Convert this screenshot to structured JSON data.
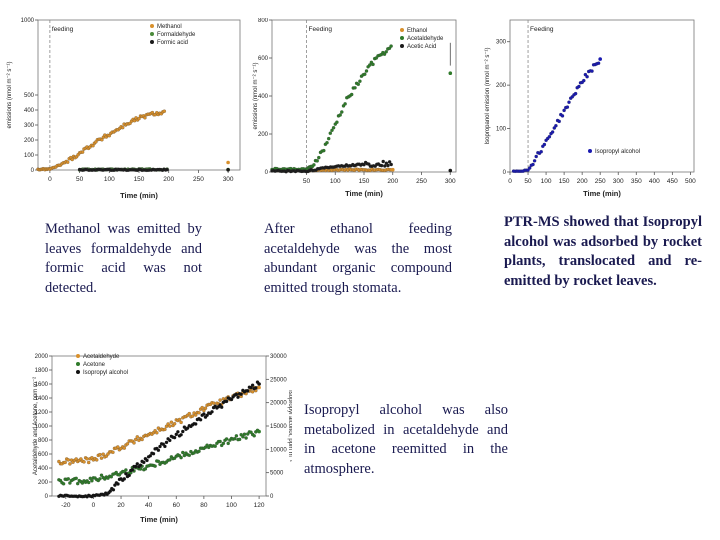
{
  "captions": {
    "methanol": "Methanol was emitted by leaves formaldehyde and formic acid was not detected.",
    "ethanol": "After ethanol feeding acetaldehyde was the most abundant organic compound emitted trough stomata.",
    "ptrms": "PTR-MS showed that Isopropyl alcohol was adsorbed by rocket plants, translocated and re-emitted by rocket leaves.",
    "isopropyl": "Isopropyl alcohol was also metabolized in acetaldehyde and in acetone reemitted in the atmosphere."
  },
  "chart_data": [
    {
      "id": "methanol",
      "type": "scatter",
      "title": "",
      "annotation": "feeding",
      "feeding_x": 0,
      "xlabel": "Time (min)",
      "ylabel": "emissions (nmol m⁻² s⁻¹)",
      "xlim": [
        -20,
        320
      ],
      "ylim": [
        0,
        1000
      ],
      "xticks": [
        0,
        50,
        100,
        150,
        200,
        250,
        300
      ],
      "yticks": [
        0,
        100,
        200,
        300,
        400,
        500,
        1000
      ],
      "legend_position": "top-right",
      "series": [
        {
          "name": "Methanol",
          "color": "#d8902c",
          "points": [
            [
              -20,
              4
            ],
            [
              -10,
              5
            ],
            [
              0,
              6
            ],
            [
              15,
              30
            ],
            [
              30,
              60
            ],
            [
              45,
              100
            ],
            [
              60,
              140
            ],
            [
              75,
              180
            ],
            [
              90,
              215
            ],
            [
              105,
              250
            ],
            [
              120,
              285
            ],
            [
              135,
              320
            ],
            [
              150,
              345
            ],
            [
              165,
              365
            ],
            [
              180,
              380
            ],
            [
              195,
              385
            ],
            [
              300,
              50
            ]
          ]
        },
        {
          "name": "Formaldehyde",
          "color": "#4a8a3a",
          "points": [
            [
              -20,
              2
            ],
            [
              50,
              3
            ],
            [
              100,
              3
            ],
            [
              150,
              4
            ],
            [
              200,
              3
            ],
            [
              300,
              3
            ]
          ]
        },
        {
          "name": "Formic acid",
          "color": "#1a1a1a",
          "points": [
            [
              -20,
              1
            ],
            [
              50,
              1
            ],
            [
              100,
              2
            ],
            [
              150,
              1
            ],
            [
              200,
              2
            ],
            [
              300,
              1
            ]
          ]
        }
      ]
    },
    {
      "id": "acetaldehyde",
      "type": "scatter",
      "title": "",
      "annotation": "Feeding",
      "feeding_x": 50,
      "xlabel": "Time (min)",
      "ylabel": "emissions (nmol m⁻² s⁻¹)",
      "xlim": [
        -10,
        310
      ],
      "ylim": [
        0,
        800
      ],
      "xticks": [
        50,
        100,
        150,
        200,
        250,
        300
      ],
      "yticks": [
        0,
        200,
        400,
        600,
        800
      ],
      "legend_position": "top-right",
      "series": [
        {
          "name": "Ethanol",
          "color": "#d8902c",
          "points": [
            [
              0,
              10
            ],
            [
              50,
              10
            ],
            [
              100,
              12
            ],
            [
              150,
              12
            ],
            [
              200,
              12
            ]
          ]
        },
        {
          "name": "Acetaldehyde",
          "color": "#2f7a2a",
          "points": [
            [
              -10,
              15
            ],
            [
              50,
              15
            ],
            [
              60,
              30
            ],
            [
              80,
              120
            ],
            [
              100,
              250
            ],
            [
              120,
              380
            ],
            [
              140,
              470
            ],
            [
              160,
              560
            ],
            [
              180,
              620
            ],
            [
              200,
              660
            ],
            [
              300,
              520
            ]
          ]
        },
        {
          "name": "Acetic Acid",
          "color": "#1a1a1a",
          "points": [
            [
              -10,
              5
            ],
            [
              50,
              5
            ],
            [
              100,
              30
            ],
            [
              150,
              40
            ],
            [
              200,
              45
            ],
            [
              300,
              8
            ]
          ]
        }
      ]
    },
    {
      "id": "isopropyl",
      "type": "scatter",
      "title": "",
      "annotation": "Feeding",
      "feeding_x": 50,
      "xlabel": "Time (min)",
      "ylabel": "Isopropanol emission (nmol m⁻² s⁻¹)",
      "xlim": [
        0,
        510
      ],
      "ylim": [
        0,
        350
      ],
      "xticks": [
        0,
        50,
        100,
        150,
        200,
        250,
        300,
        350,
        400,
        450,
        500
      ],
      "yticks": [
        0,
        100,
        200,
        300
      ],
      "legend_position": "bottom-right",
      "series": [
        {
          "name": "Isopropyl alcohol",
          "color": "#1a1ab0",
          "points": [
            [
              10,
              2
            ],
            [
              50,
              4
            ],
            [
              100,
              70
            ],
            [
              150,
              140
            ],
            [
              200,
              210
            ],
            [
              250,
              260
            ]
          ]
        }
      ]
    },
    {
      "id": "combined",
      "type": "scatter",
      "title": "",
      "xlabel": "Time (min)",
      "ylabel": "Acetaldehyde and Acetone, ppm m⁻²",
      "y2label": "Isopropyl alcohol, ppm m⁻²",
      "xlim": [
        -30,
        125
      ],
      "ylim": [
        0,
        2000
      ],
      "y2lim": [
        0,
        30000
      ],
      "xticks": [
        -20,
        0,
        20,
        40,
        60,
        80,
        100,
        120
      ],
      "yticks": [
        0,
        200,
        400,
        600,
        800,
        1000,
        1200,
        1400,
        1600,
        1800,
        2000
      ],
      "y2ticks": [
        0,
        5000,
        10000,
        15000,
        20000,
        25000,
        30000
      ],
      "legend_position": "top-left",
      "series": [
        {
          "name": "Acetaldehyde",
          "color": "#d8902c",
          "axis": "left",
          "points": [
            [
              -25,
              480
            ],
            [
              0,
              520
            ],
            [
              20,
              700
            ],
            [
              40,
              880
            ],
            [
              60,
              1050
            ],
            [
              80,
              1250
            ],
            [
              100,
              1400
            ],
            [
              120,
              1550
            ]
          ]
        },
        {
          "name": "Acetone",
          "color": "#2f7a2a",
          "axis": "left",
          "points": [
            [
              -25,
              200
            ],
            [
              0,
              230
            ],
            [
              20,
              330
            ],
            [
              40,
              430
            ],
            [
              60,
              560
            ],
            [
              80,
              680
            ],
            [
              100,
              800
            ],
            [
              120,
              920
            ]
          ]
        },
        {
          "name": "Isopropyl alcohol",
          "color": "#111111",
          "axis": "right",
          "points": [
            [
              -25,
              0
            ],
            [
              0,
              0
            ],
            [
              10,
              500
            ],
            [
              20,
              3500
            ],
            [
              40,
              8500
            ],
            [
              60,
              13000
            ],
            [
              80,
              17000
            ],
            [
              100,
              21000
            ],
            [
              120,
              24000
            ]
          ]
        }
      ]
    }
  ]
}
